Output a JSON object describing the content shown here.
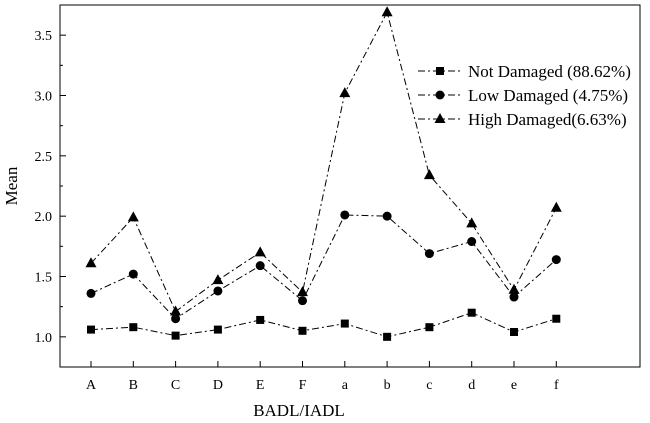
{
  "chart_data": {
    "type": "line",
    "title": "",
    "xlabel": "BADL/IADL",
    "ylabel": "Mean",
    "categories": [
      "A",
      "B",
      "C",
      "D",
      "E",
      "F",
      "a",
      "b",
      "c",
      "d",
      "e",
      "f"
    ],
    "ylim": [
      0.75,
      3.75
    ],
    "yticks": [
      "1.0",
      "1.5",
      "2.0",
      "2.5",
      "3.0",
      "3.5"
    ],
    "grid": false,
    "legend_position": "top-right",
    "series": [
      {
        "name": "Not Damaged (88.62%)",
        "marker": "square",
        "values": [
          1.06,
          1.08,
          1.01,
          1.06,
          1.14,
          1.05,
          1.11,
          1.0,
          1.08,
          1.2,
          1.04,
          1.15
        ]
      },
      {
        "name": "Low Damaged (4.75%)",
        "marker": "circle",
        "values": [
          1.36,
          1.52,
          1.15,
          1.38,
          1.59,
          1.3,
          2.01,
          2.0,
          1.69,
          1.79,
          1.33,
          1.64
        ]
      },
      {
        "name": "High Damaged(6.63%)",
        "marker": "triangle",
        "values": [
          1.61,
          1.99,
          1.21,
          1.47,
          1.7,
          1.37,
          3.02,
          3.69,
          2.34,
          1.94,
          1.39,
          2.07
        ]
      }
    ]
  }
}
